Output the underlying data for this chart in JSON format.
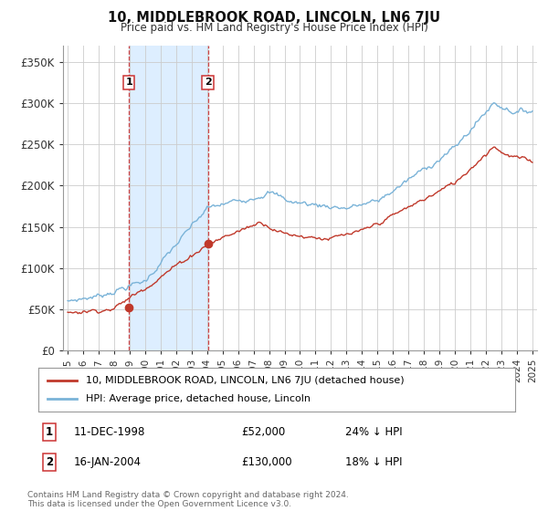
{
  "title": "10, MIDDLEBROOK ROAD, LINCOLN, LN6 7JU",
  "subtitle": "Price paid vs. HM Land Registry's House Price Index (HPI)",
  "ylabel_ticks": [
    "£0",
    "£50K",
    "£100K",
    "£150K",
    "£200K",
    "£250K",
    "£300K",
    "£350K"
  ],
  "ytick_values": [
    0,
    50000,
    100000,
    150000,
    200000,
    250000,
    300000,
    350000
  ],
  "ylim": [
    0,
    370000
  ],
  "xlim_start": 1994.7,
  "xlim_end": 2025.3,
  "hpi_color": "#7ab3d8",
  "price_color": "#c0392b",
  "marker1_date": 1998.95,
  "marker1_price": 52000,
  "marker2_date": 2004.05,
  "marker2_price": 130000,
  "sale1_label": "1",
  "sale2_label": "2",
  "sale1_date_str": "11-DEC-1998",
  "sale1_price_str": "£52,000",
  "sale1_hpi_str": "24% ↓ HPI",
  "sale2_date_str": "16-JAN-2004",
  "sale2_price_str": "£130,000",
  "sale2_hpi_str": "18% ↓ HPI",
  "legend_line1": "10, MIDDLEBROOK ROAD, LINCOLN, LN6 7JU (detached house)",
  "legend_line2": "HPI: Average price, detached house, Lincoln",
  "footnote": "Contains HM Land Registry data © Crown copyright and database right 2024.\nThis data is licensed under the Open Government Licence v3.0.",
  "vline1_x": 1998.95,
  "vline2_x": 2004.05,
  "background_color": "#ffffff",
  "grid_color": "#cccccc",
  "shade_color": "#ddeeff"
}
